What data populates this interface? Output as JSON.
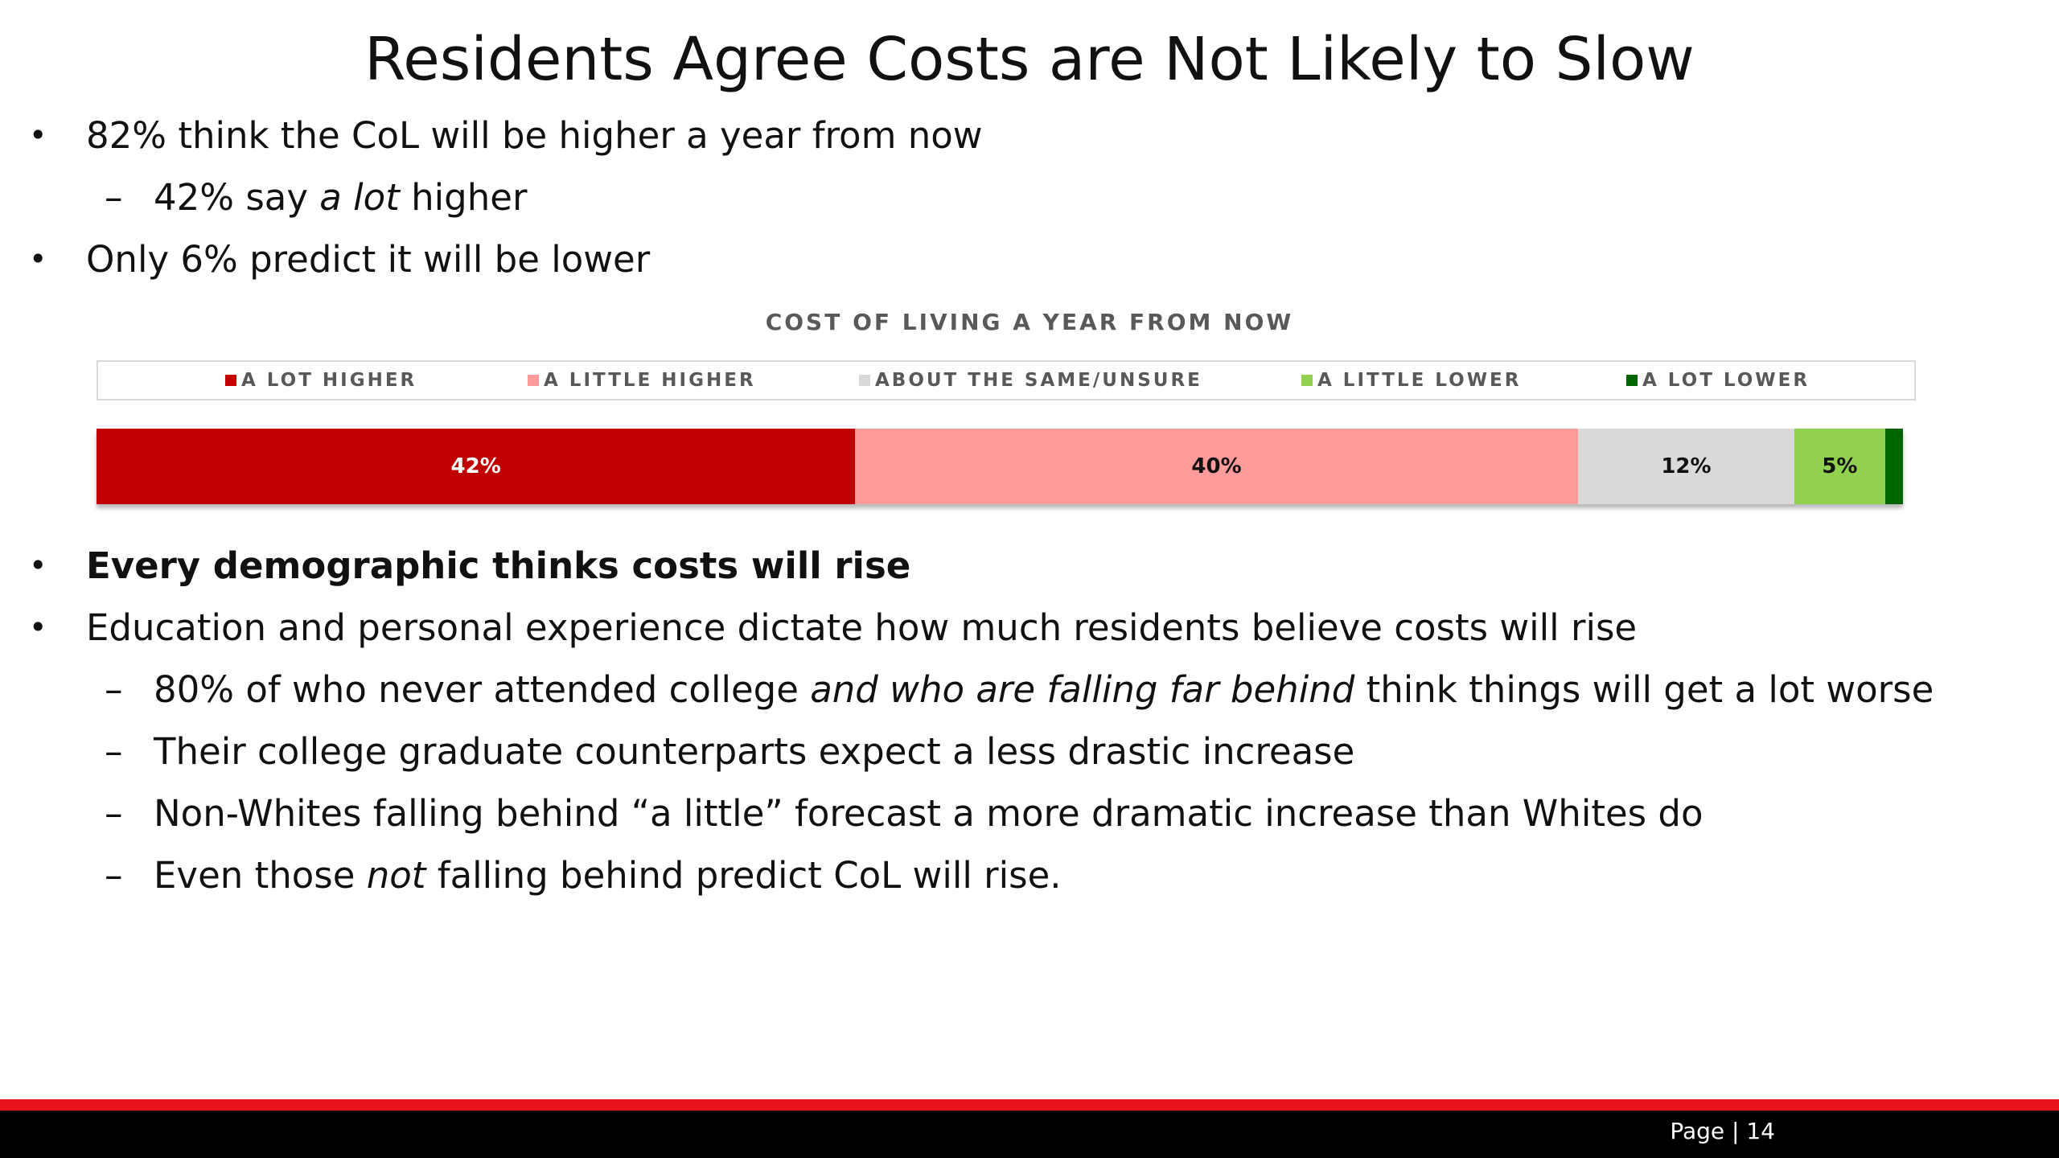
{
  "slide": {
    "title": "Residents Agree Costs are Not Likely to Slow",
    "page_label": "Page | 14"
  },
  "bullets_top": {
    "b1": "82% think the CoL will be higher a year from now",
    "b1_sub": {
      "before": "42% say ",
      "italic": "a lot",
      "after": " higher"
    },
    "b2": "Only 6% predict it will be lower"
  },
  "bullets_bottom": {
    "b3": "Every demographic thinks costs will rise",
    "b4": "Education and personal experience dictate how much residents believe costs will rise",
    "b4_sub1": {
      "before": "80% of who never attended college ",
      "italic": "and who are falling far behind",
      "after": " think things will get a lot worse"
    },
    "b4_sub2": "Their college graduate counterparts expect a less drastic increase",
    "b4_sub3": "Non-Whites falling behind “a little” forecast a more dramatic increase than Whites do",
    "b4_sub4": {
      "before": "Even those ",
      "italic": "not",
      "after": " falling behind predict CoL will rise."
    }
  },
  "markers": {
    "bullet": "•",
    "dash": "–"
  },
  "chart_data": {
    "type": "bar",
    "orientation": "horizontal",
    "stacked": true,
    "title": "COST OF LIVING A YEAR FROM NOW",
    "legend_position": "top",
    "grid": false,
    "xlim": [
      0,
      100
    ],
    "series": [
      {
        "name": "A LOT HIGHER",
        "value": 42,
        "label": "42%",
        "color": "#c00000",
        "text_color": "#ffffff"
      },
      {
        "name": "A LITTLE HIGHER",
        "value": 40,
        "label": "40%",
        "color": "#ff9b9b",
        "text_color": "#111111"
      },
      {
        "name": "ABOUT THE SAME/UNSURE",
        "value": 12,
        "label": "12%",
        "color": "#d9d9d9",
        "text_color": "#111111"
      },
      {
        "name": "A LITTLE LOWER",
        "value": 5,
        "label": "5%",
        "color": "#92d050",
        "text_color": "#111111"
      },
      {
        "name": "A LOT LOWER",
        "value": 1,
        "label": "",
        "color": "#006400",
        "text_color": "#ffffff"
      }
    ]
  },
  "colors": {
    "accent_red": "#e8141c",
    "footer_black": "#000000"
  }
}
